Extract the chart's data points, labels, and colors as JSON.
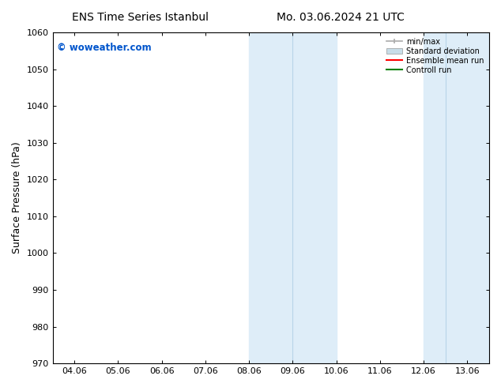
{
  "title_left": "ENS Time Series Istanbul",
  "title_right": "Mo. 03.06.2024 21 UTC",
  "ylabel": "Surface Pressure (hPa)",
  "ylim": [
    970,
    1060
  ],
  "yticks": [
    970,
    980,
    990,
    1000,
    1010,
    1020,
    1030,
    1040,
    1050,
    1060
  ],
  "xtick_labels": [
    "04.06",
    "05.06",
    "06.06",
    "07.06",
    "08.06",
    "09.06",
    "10.06",
    "11.06",
    "12.06",
    "13.06"
  ],
  "xtick_positions": [
    0,
    1,
    2,
    3,
    4,
    5,
    6,
    7,
    8,
    9
  ],
  "xlim": [
    -0.5,
    9.5
  ],
  "band1_start": 4.0,
  "band1_mid": 5.0,
  "band1_end": 6.0,
  "band2_start": 8.0,
  "band2_mid": 8.5,
  "band2_end": 9.5,
  "band_color": "#deedf8",
  "band_divider_color": "#b8d4e8",
  "minmax_color": "#aaaaaa",
  "stddev_color": "#c8dde8",
  "ensemble_mean_color": "#ff0000",
  "control_run_color": "#008000",
  "watermark_text": "© woweather.com",
  "watermark_color": "#0055cc",
  "bg_color": "#ffffff",
  "legend_labels": [
    "min/max",
    "Standard deviation",
    "Ensemble mean run",
    "Controll run"
  ],
  "legend_colors": [
    "#aaaaaa",
    "#c8dde8",
    "#ff0000",
    "#008000"
  ],
  "title_fontsize": 10,
  "tick_fontsize": 8,
  "ylabel_fontsize": 9
}
